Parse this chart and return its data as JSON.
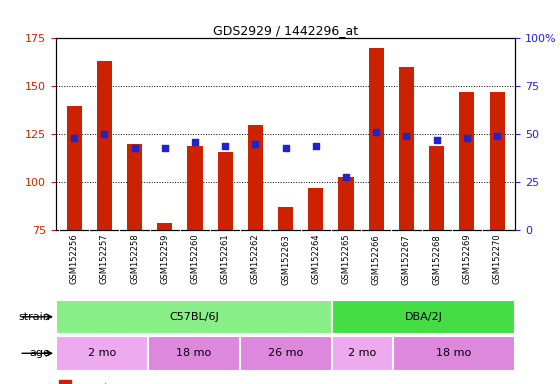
{
  "title": "GDS2929 / 1442296_at",
  "samples": [
    "GSM152256",
    "GSM152257",
    "GSM152258",
    "GSM152259",
    "GSM152260",
    "GSM152261",
    "GSM152262",
    "GSM152263",
    "GSM152264",
    "GSM152265",
    "GSM152266",
    "GSM152267",
    "GSM152268",
    "GSM152269",
    "GSM152270"
  ],
  "counts": [
    140,
    163,
    120,
    79,
    119,
    116,
    130,
    87,
    97,
    103,
    170,
    160,
    119,
    147,
    147
  ],
  "percentile_ranks": [
    48,
    50,
    43,
    43,
    46,
    44,
    45,
    43,
    44,
    28,
    51,
    49,
    47,
    48,
    49
  ],
  "ylim_left": [
    75,
    175
  ],
  "ylim_right": [
    0,
    100
  ],
  "yticks_left": [
    75,
    100,
    125,
    150,
    175
  ],
  "yticks_right": [
    0,
    25,
    50,
    75,
    100
  ],
  "bar_color": "#cc2200",
  "dot_color": "#2222cc",
  "bar_bottom": 75,
  "strain_groups": [
    {
      "label": "C57BL/6J",
      "start": 0,
      "end": 9
    },
    {
      "label": "DBA/2J",
      "start": 9,
      "end": 15
    }
  ],
  "strain_colors": [
    "#88ee88",
    "#44dd44"
  ],
  "age_groups": [
    {
      "label": "2 mo",
      "start": 0,
      "end": 3
    },
    {
      "label": "18 mo",
      "start": 3,
      "end": 6
    },
    {
      "label": "26 mo",
      "start": 6,
      "end": 9
    },
    {
      "label": "2 mo",
      "start": 9,
      "end": 11
    },
    {
      "label": "18 mo",
      "start": 11,
      "end": 15
    }
  ],
  "age_colors": [
    "#eeaaee",
    "#dd88dd",
    "#dd88dd",
    "#eeaaee",
    "#dd88dd"
  ],
  "legend_count_color": "#cc2200",
  "legend_pct_color": "#2222cc",
  "tick_label_color_left": "#cc2200",
  "tick_label_color_right": "#2222cc"
}
